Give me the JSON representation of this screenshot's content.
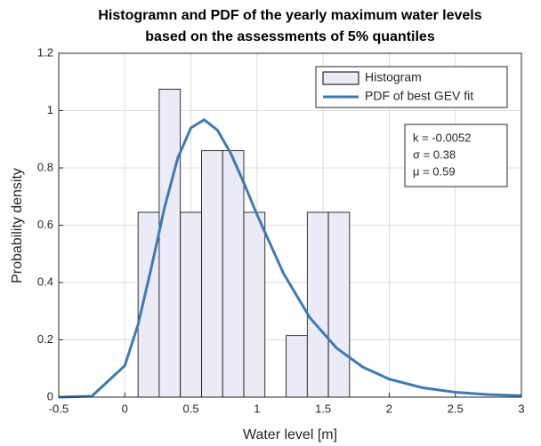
{
  "chart_data": {
    "type": "histogram",
    "title": [
      "Histogramn and PDF of the yearly maximum water levels",
      "based on the assessments of 5% quantiles"
    ],
    "x_label": "Water level [m]",
    "y_label": "Probability density",
    "histogram_name": "Histogram",
    "color": "#ebebf8",
    "bins": [
      0.1,
      0.26,
      0.42,
      0.58,
      0.74,
      0.9,
      1.06,
      1.22,
      1.38,
      1.54,
      1.7
    ],
    "counts": [
      0.645,
      1.075,
      0.645,
      0.86,
      0.86,
      0.645,
      0,
      0.215,
      0.645,
      0.645
    ],
    "curve": {
      "name": "PDF of best GEV fit",
      "color": "#3d7ab5",
      "x": [
        -0.5,
        -0.25,
        0,
        0.1,
        0.2,
        0.3,
        0.4,
        0.5,
        0.6,
        0.7,
        0.8,
        0.9,
        1.0,
        1.2,
        1.4,
        1.6,
        1.8,
        2.0,
        2.25,
        2.5,
        2.75,
        3.0
      ],
      "values": [
        0,
        0.003,
        0.11,
        0.253,
        0.451,
        0.661,
        0.834,
        0.94,
        0.968,
        0.932,
        0.852,
        0.748,
        0.637,
        0.432,
        0.277,
        0.172,
        0.105,
        0.063,
        0.033,
        0.017,
        0.009,
        0.005
      ]
    },
    "annotation": [
      "k = -0.0052",
      "σ = 0.38",
      "μ = 0.59"
    ],
    "xlim": [
      -0.5,
      3
    ],
    "ylim": [
      0,
      1.2
    ],
    "xticks": [
      -0.5,
      0,
      0.5,
      1,
      1.5,
      2,
      2.5,
      3
    ],
    "yticks": [
      0,
      0.2,
      0.4,
      0.6,
      0.8,
      1,
      1.2
    ],
    "grid": true,
    "legend": "upper right"
  }
}
